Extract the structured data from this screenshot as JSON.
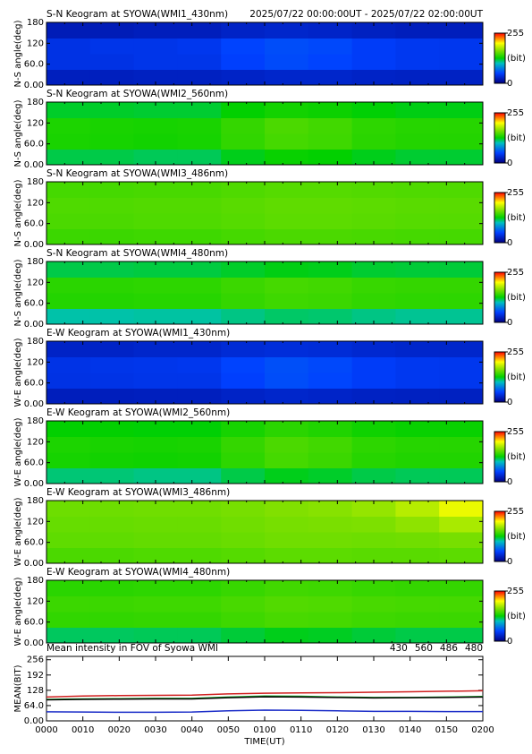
{
  "chart_data": [
    {
      "type": "heatmap",
      "title": "S-N Keogram at SYOWA(WMI1_430nm)",
      "subtitle": "2025/07/22 00:00:00UT - 2025/07/22 02:00:00UT",
      "ylabel": "N-S angle(deg)",
      "xlim": [
        0,
        120
      ],
      "ylim": [
        0,
        180
      ],
      "yticks": [
        {
          "value": 0,
          "label": "0.00"
        },
        {
          "value": 60,
          "label": "60.0"
        },
        120,
        180
      ],
      "clim": [
        0,
        255
      ],
      "cticks": [
        0,
        255
      ],
      "clabel": "(bit)",
      "values": [
        [
          25,
          25,
          26,
          26,
          28,
          30,
          30,
          28,
          27,
          27
        ],
        [
          40,
          40,
          42,
          42,
          50,
          55,
          52,
          48,
          45,
          44
        ],
        [
          40,
          42,
          42,
          44,
          52,
          56,
          54,
          48,
          45,
          44
        ],
        [
          22,
          22,
          24,
          24,
          28,
          30,
          29,
          26,
          24,
          24
        ]
      ]
    },
    {
      "type": "heatmap",
      "title": "S-N Keogram at SYOWA(WMI2_560nm)",
      "ylabel": "N-S angle(deg)",
      "xlim": [
        0,
        120
      ],
      "ylim": [
        0,
        180
      ],
      "yticks": [
        {
          "value": 0,
          "label": "0.00"
        },
        {
          "value": 60,
          "label": "60.0"
        },
        120,
        180
      ],
      "clim": [
        0,
        255
      ],
      "cticks": [
        0,
        255
      ],
      "clabel": "(bit)",
      "values": [
        [
          118,
          118,
          116,
          116,
          124,
          130,
          128,
          124,
          121,
          121
        ],
        [
          135,
          134,
          133,
          134,
          142,
          148,
          146,
          140,
          138,
          138
        ],
        [
          136,
          135,
          134,
          135,
          143,
          150,
          147,
          141,
          139,
          139
        ],
        [
          122,
          122,
          121,
          121,
          128,
          133,
          131,
          127,
          125,
          125
        ]
      ]
    },
    {
      "type": "heatmap",
      "title": "S-N Keogram at SYOWA(WMI3_486nm)",
      "ylabel": "N-S angle(deg)",
      "xlim": [
        0,
        120
      ],
      "ylim": [
        0,
        180
      ],
      "yticks": [
        {
          "value": 0,
          "label": "0.00"
        },
        {
          "value": 60,
          "label": "60.0"
        },
        120,
        180
      ],
      "clim": [
        0,
        255
      ],
      "cticks": [
        0,
        255
      ],
      "clabel": "(bit)",
      "values": [
        [
          145,
          145,
          146,
          146,
          148,
          150,
          150,
          149,
          148,
          148
        ],
        [
          150,
          150,
          151,
          151,
          153,
          155,
          155,
          154,
          153,
          153
        ],
        [
          151,
          151,
          152,
          152,
          154,
          156,
          156,
          155,
          154,
          154
        ],
        [
          148,
          148,
          149,
          149,
          151,
          153,
          153,
          152,
          151,
          151
        ]
      ]
    },
    {
      "type": "heatmap",
      "title": "S-N Keogram at SYOWA(WMI4_480nm)",
      "ylabel": "N-S angle(deg)",
      "xlim": [
        0,
        120
      ],
      "ylim": [
        0,
        180
      ],
      "yticks": [
        {
          "value": 0,
          "label": "0.00"
        },
        {
          "value": 60,
          "label": "60.0"
        },
        120,
        180
      ],
      "clim": [
        0,
        255
      ],
      "cticks": [
        0,
        255
      ],
      "clabel": "(bit)",
      "values": [
        [
          105,
          105,
          106,
          106,
          110,
          114,
          113,
          110,
          108,
          108
        ],
        [
          138,
          138,
          139,
          139,
          143,
          146,
          145,
          142,
          141,
          141
        ],
        [
          140,
          140,
          141,
          141,
          145,
          148,
          147,
          144,
          143,
          143
        ],
        [
          118,
          118,
          119,
          119,
          122,
          125,
          124,
          121,
          120,
          120
        ]
      ]
    },
    {
      "type": "heatmap",
      "title": "E-W Keogram at SYOWA(WMI1_430nm)",
      "ylabel": "W-E angle(deg)",
      "xlim": [
        0,
        120
      ],
      "ylim": [
        0,
        180
      ],
      "yticks": [
        {
          "value": 0,
          "label": "0.00"
        },
        {
          "value": 60,
          "label": "60.0"
        },
        120,
        180
      ],
      "clim": [
        0,
        255
      ],
      "cticks": [
        0,
        255
      ],
      "clabel": "(bit)",
      "values": [
        [
          24,
          24,
          25,
          25,
          28,
          30,
          29,
          27,
          26,
          26
        ],
        [
          40,
          41,
          42,
          42,
          50,
          56,
          53,
          48,
          45,
          44
        ],
        [
          41,
          42,
          43,
          44,
          52,
          57,
          54,
          48,
          45,
          44
        ],
        [
          28,
          28,
          30,
          30,
          34,
          36,
          35,
          32,
          30,
          30
        ]
      ]
    },
    {
      "type": "heatmap",
      "title": "E-W Keogram at SYOWA(WMI2_560nm)",
      "ylabel": "W-E angle(deg)",
      "xlim": [
        0,
        120
      ],
      "ylim": [
        0,
        180
      ],
      "yticks": [
        {
          "value": 0,
          "label": "0.00"
        },
        {
          "value": 60,
          "label": "60.0"
        },
        120,
        180
      ],
      "clim": [
        0,
        255
      ],
      "cticks": [
        0,
        255
      ],
      "clabel": "(bit)",
      "values": [
        [
          112,
          112,
          110,
          110,
          118,
          124,
          122,
          118,
          116,
          116
        ],
        [
          134,
          133,
          132,
          133,
          141,
          148,
          145,
          139,
          137,
          137
        ],
        [
          136,
          135,
          134,
          135,
          143,
          150,
          147,
          141,
          139,
          139
        ],
        [
          128,
          128,
          127,
          127,
          134,
          140,
          137,
          132,
          130,
          130
        ]
      ]
    },
    {
      "type": "heatmap",
      "title": "E-W Keogram at SYOWA(WMI3_486nm)",
      "ylabel": "W-E angle(deg)",
      "xlim": [
        0,
        120
      ],
      "ylim": [
        0,
        180
      ],
      "yticks": [
        {
          "value": 0,
          "label": "0.00"
        },
        {
          "value": 60,
          "label": "60.0"
        },
        120,
        180
      ],
      "clim": [
        0,
        255
      ],
      "cticks": [
        0,
        255
      ],
      "clabel": "(bit)",
      "values": [
        [
          150,
          150,
          151,
          151,
          153,
          155,
          155,
          154,
          154,
          155
        ],
        [
          156,
          156,
          157,
          157,
          159,
          161,
          161,
          160,
          161,
          163
        ],
        [
          158,
          158,
          159,
          159,
          161,
          163,
          164,
          165,
          170,
          178
        ],
        [
          160,
          160,
          161,
          161,
          163,
          166,
          168,
          172,
          182,
          198
        ]
      ]
    },
    {
      "type": "heatmap",
      "title": "E-W Keogram at SYOWA(WMI4_480nm)",
      "ylabel": "W-E angle(deg)",
      "xlim": [
        0,
        120
      ],
      "ylim": [
        0,
        180
      ],
      "yticks": [
        {
          "value": 0,
          "label": "0.00"
        },
        {
          "value": 60,
          "label": "60.0"
        },
        120,
        180
      ],
      "clim": [
        0,
        255
      ],
      "cticks": [
        0,
        255
      ],
      "clabel": "(bit)",
      "values": [
        [
          115,
          115,
          116,
          116,
          120,
          124,
          123,
          120,
          118,
          118
        ],
        [
          142,
          142,
          143,
          143,
          146,
          149,
          148,
          146,
          145,
          145
        ],
        [
          145,
          145,
          146,
          146,
          149,
          152,
          151,
          149,
          148,
          148
        ],
        [
          140,
          140,
          141,
          141,
          144,
          147,
          146,
          144,
          143,
          143
        ]
      ]
    },
    {
      "type": "line",
      "title": "Mean intensity in FOV of Syowa WMI",
      "ylabel": "MEAN(BIT)",
      "xlabel": "TIME(UT)",
      "x": [
        0,
        10,
        20,
        30,
        40,
        50,
        60,
        70,
        80,
        90,
        100,
        110,
        120
      ],
      "xlim": [
        0,
        120
      ],
      "xticks": [
        {
          "value": 0,
          "label": "0000"
        },
        {
          "value": 10,
          "label": "0010"
        },
        {
          "value": 20,
          "label": "0020"
        },
        {
          "value": 30,
          "label": "0030"
        },
        {
          "value": 40,
          "label": "0040"
        },
        {
          "value": 50,
          "label": "0050"
        },
        {
          "value": 60,
          "label": "0100"
        },
        {
          "value": 70,
          "label": "0110"
        },
        {
          "value": 80,
          "label": "0120"
        },
        {
          "value": 90,
          "label": "0130"
        },
        {
          "value": 100,
          "label": "0140"
        },
        {
          "value": 110,
          "label": "0150"
        },
        {
          "value": 120,
          "label": "0200"
        }
      ],
      "ylim": [
        0,
        270
      ],
      "yticks": [
        {
          "value": 0,
          "label": "0.00"
        },
        {
          "value": 64,
          "label": "64.0"
        },
        128,
        192,
        256
      ],
      "series": [
        {
          "name": "430",
          "color": "#1a2cc8",
          "values": [
            38,
            37,
            36,
            36,
            37,
            42,
            45,
            44,
            42,
            40,
            40,
            39,
            39
          ]
        },
        {
          "name": "560",
          "color": "#20b030",
          "values": [
            90,
            92,
            93,
            94,
            94,
            100,
            104,
            103,
            100,
            98,
            98,
            100,
            102
          ]
        },
        {
          "name": "486",
          "color": "#d02020",
          "values": [
            100,
            104,
            106,
            107,
            108,
            113,
            116,
            117,
            118,
            120,
            122,
            124,
            126
          ]
        },
        {
          "name": "480",
          "color": "#000000",
          "values": [
            88,
            90,
            91,
            92,
            92,
            97,
            101,
            100,
            98,
            96,
            97,
            98,
            100
          ]
        }
      ]
    }
  ]
}
